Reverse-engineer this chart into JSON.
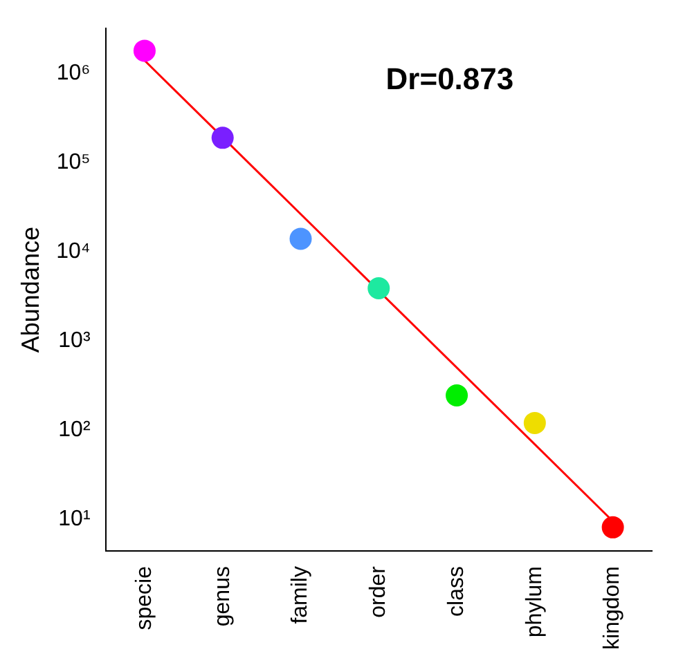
{
  "chart_data": {
    "type": "scatter",
    "ylabel": "Abundance",
    "categories": [
      "specie",
      "genus",
      "family",
      "order",
      "class",
      "phylum",
      "kingdom"
    ],
    "series": [
      {
        "marker": "circle",
        "colors": [
          "#ff00ff",
          "#7a1fff",
          "#4d94ff",
          "#1de9a0",
          "#00ee00",
          "#eedd00",
          "#ff0000"
        ],
        "values": [
          1800000,
          190000,
          14000,
          3900,
          245,
          120,
          8.1
        ]
      },
      {
        "type": "line",
        "color": "#ff0000",
        "x": [
          "specie",
          "kingdom"
        ],
        "values": [
          1400000,
          9.5
        ]
      }
    ],
    "log": "y",
    "ylim": [
      4.4,
      3200000
    ],
    "yticks": [
      {
        "value": 10,
        "label": "10¹"
      },
      {
        "value": 100,
        "label": "10²"
      },
      {
        "value": 1000,
        "label": "10³"
      },
      {
        "value": 10000,
        "label": "10⁴"
      },
      {
        "value": 100000,
        "label": "10⁵"
      },
      {
        "value": 1000000,
        "label": "10⁶"
      }
    ],
    "annotations": [
      "Dr=0.873"
    ],
    "grid": false,
    "legend": false
  }
}
